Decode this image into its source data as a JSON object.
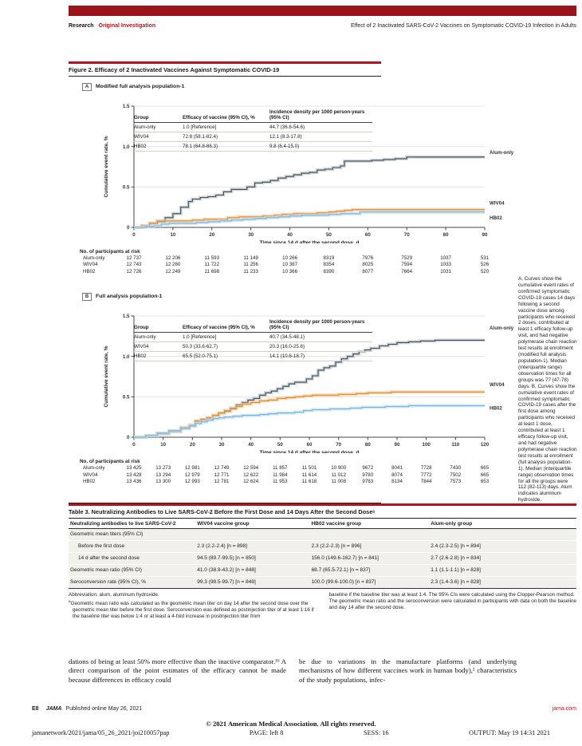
{
  "header": {
    "kicker_left": "Research",
    "kicker_right": "Original Investigation",
    "running_title": "Effect of 2 Inactivated SARS-CoV-2 Vaccines on Symptomatic COVID-19 Infection in Adults"
  },
  "figure": {
    "title": "Figure 2. Efficacy of 2 Inactivated Vaccines Against Symptomatic COVID-19",
    "caption": "A, Curves show the cumulative event rates of confirmed symptomatic COVID-19 cases 14 days following a second vaccine dose among participants who received 2 doses, contributed at least 1 efficacy follow-up visit, and had negative polymerase chain reaction test results at enrollment (modified full analysis population-1). Median (interquartile range) observation times for all groups was 77 (47-78) days. B, Curves show the cumulative event rates of confirmed symptomatic COVID-19 cases after the first dose among participants who received at least 1 dose, contributed at least 1 efficacy follow-up visit, and had negative polymerase chain reaction test results at enrollment (full analysis population-1). Median (interquartile range) observation times for all the groups were 112 (82-113) days. Alum indicates aluminum hydroxide."
  },
  "chart_data": [
    {
      "type": "line",
      "panel": "A",
      "subtitle": "Modified full analysis population-1",
      "xlabel": "Time since 14 d after the second dose, d",
      "ylabel": "Cumulative event rate, %",
      "xlim": [
        0,
        90
      ],
      "ylim": [
        0,
        1.5
      ],
      "xticks": [
        0,
        10,
        20,
        30,
        40,
        50,
        60,
        70,
        80,
        90
      ],
      "yticks": [
        "0",
        "0.5",
        "1.0",
        "1.5"
      ],
      "grid": "horizontal",
      "legend_position": "right-of-curves",
      "inset": {
        "headers": [
          "Group",
          "Efficacy of vaccine (95% CI), %",
          "Incidence density per 1000 person-years (95% CI)"
        ],
        "rows": [
          [
            "Alum-only",
            "1.0 [Reference]",
            "44.7 (36.6-54.6)"
          ],
          [
            "WIV04",
            "72.8 (58.1-82.4)",
            "12.1 (8.3-17.8)"
          ],
          [
            "HB02",
            "78.1 (64.8-86.3)",
            "9.8 (6.4-15.0)"
          ]
        ]
      },
      "series": [
        {
          "name": "Alum-only",
          "color": "#3f4e58",
          "band": "#b9c4cb",
          "label_y": 0.93,
          "x": [
            0,
            2,
            4,
            6,
            8,
            10,
            12,
            14,
            15,
            17,
            19,
            21,
            23,
            25,
            27,
            29,
            31,
            33,
            35,
            37,
            39,
            41,
            43,
            45,
            47,
            49,
            51,
            53,
            54,
            58,
            61,
            64,
            67,
            70,
            90
          ],
          "y": [
            0,
            0.02,
            0.05,
            0.08,
            0.12,
            0.17,
            0.25,
            0.32,
            0.35,
            0.37,
            0.38,
            0.4,
            0.44,
            0.47,
            0.47,
            0.5,
            0.55,
            0.56,
            0.58,
            0.61,
            0.63,
            0.65,
            0.67,
            0.68,
            0.71,
            0.72,
            0.74,
            0.76,
            0.82,
            0.82,
            0.83,
            0.84,
            0.85,
            0.87,
            0.87
          ]
        },
        {
          "name": "WIV04",
          "color": "#e08a28",
          "band": "#f3c795",
          "label_y": 0.3,
          "x": [
            0,
            2,
            4,
            6,
            8,
            12,
            15,
            18,
            21,
            24,
            27,
            30,
            33,
            36,
            38,
            41,
            44,
            47,
            50,
            52,
            54,
            56,
            90
          ],
          "y": [
            0,
            0.02,
            0.05,
            0.07,
            0.08,
            0.08,
            0.09,
            0.1,
            0.1,
            0.12,
            0.13,
            0.13,
            0.14,
            0.15,
            0.16,
            0.17,
            0.17,
            0.18,
            0.19,
            0.2,
            0.21,
            0.22,
            0.22
          ]
        },
        {
          "name": "HB02",
          "color": "#76b4e0",
          "band": "#bddcf0",
          "label_y": 0.12,
          "x": [
            0,
            3,
            5,
            7,
            9,
            13,
            16,
            19,
            22,
            25,
            28,
            31,
            34,
            37,
            40,
            43,
            47,
            50,
            53,
            56,
            58,
            90
          ],
          "y": [
            0,
            0.01,
            0.02,
            0.04,
            0.05,
            0.05,
            0.06,
            0.07,
            0.08,
            0.09,
            0.1,
            0.11,
            0.12,
            0.13,
            0.14,
            0.15,
            0.15,
            0.16,
            0.17,
            0.17,
            0.19,
            0.19
          ]
        }
      ],
      "risk": {
        "title": "No. of participants at risk",
        "rows": [
          {
            "label": "Alum-only",
            "values": [
              "12 737",
              "12 206",
              "11 593",
              "11 149",
              "10 266",
              "8319",
              "7976",
              "7529",
              "1037",
              "531"
            ]
          },
          {
            "label": "WIV04",
            "values": [
              "12 743",
              "12 260",
              "11 722",
              "11 256",
              "10 387",
              "8354",
              "8025",
              "7594",
              "1033",
              "526"
            ]
          },
          {
            "label": "HB02",
            "values": [
              "12 726",
              "12 249",
              "11 698",
              "11 233",
              "10 366",
              "8390",
              "8077",
              "7664",
              "1031",
              "520"
            ]
          }
        ]
      }
    },
    {
      "type": "line",
      "panel": "B",
      "subtitle": "Full analysis population-1",
      "xlabel": "Time since 14 d after the second dose, d",
      "ylabel": "Cumulative event rate, %",
      "xlim": [
        0,
        120
      ],
      "ylim": [
        0,
        1.5
      ],
      "xticks": [
        0,
        10,
        20,
        30,
        40,
        50,
        60,
        70,
        80,
        90,
        100,
        110,
        120
      ],
      "yticks": [
        "0",
        "0.5",
        "1.0",
        "1.5"
      ],
      "grid": "horizontal",
      "legend_position": "right-of-curves",
      "inset": {
        "headers": [
          "Group",
          "Efficacy of vaccine (95% CI), %",
          "Incidence density per 1000 person-years (95% CI)"
        ],
        "rows": [
          [
            "Alum-only",
            "1.0 [Reference]",
            "40.7 (34.5-48.1)"
          ],
          [
            "WIV04",
            "50.3 (33.6-62.7)",
            "20.3 (16.0-25.6)"
          ],
          [
            "HB02",
            "65.5 (52.0-75.1)",
            "14.1 (10.6-18.7)"
          ]
        ]
      },
      "series": [
        {
          "name": "Alum-only",
          "color": "#3f4e58",
          "band": "#b9c4cb",
          "label_y": 1.35,
          "x": [
            0,
            4,
            8,
            12,
            16,
            19,
            21,
            23,
            25,
            27,
            29,
            31,
            33,
            35,
            37,
            39,
            41,
            43,
            45,
            47,
            49,
            51,
            53,
            55,
            57,
            59,
            61,
            63,
            65,
            67,
            69,
            71,
            73,
            75,
            77,
            79,
            81,
            84,
            87,
            90,
            94,
            98,
            103,
            120
          ],
          "y": [
            0,
            0.02,
            0.04,
            0.07,
            0.11,
            0.14,
            0.2,
            0.22,
            0.24,
            0.27,
            0.3,
            0.33,
            0.36,
            0.4,
            0.43,
            0.46,
            0.48,
            0.52,
            0.55,
            0.57,
            0.6,
            0.63,
            0.66,
            0.68,
            0.68,
            0.72,
            0.76,
            0.83,
            0.86,
            0.88,
            0.93,
            0.97,
            1.0,
            1.03,
            1.06,
            1.08,
            1.1,
            1.13,
            1.15,
            1.17,
            1.18,
            1.19,
            1.2,
            1.2
          ]
        },
        {
          "name": "WIV04",
          "color": "#e08a28",
          "band": "#f3c795",
          "label_y": 0.65,
          "x": [
            0,
            4,
            8,
            12,
            16,
            19,
            21,
            23,
            25,
            27,
            29,
            31,
            33,
            35,
            37,
            40,
            43,
            46,
            49,
            52,
            55,
            58,
            61,
            64,
            67,
            70,
            73,
            76,
            80,
            84,
            88,
            92,
            120
          ],
          "y": [
            0,
            0.02,
            0.05,
            0.08,
            0.12,
            0.15,
            0.2,
            0.22,
            0.24,
            0.27,
            0.3,
            0.32,
            0.35,
            0.38,
            0.41,
            0.43,
            0.45,
            0.46,
            0.48,
            0.49,
            0.5,
            0.51,
            0.52,
            0.52,
            0.52,
            0.53,
            0.53,
            0.54,
            0.55,
            0.55,
            0.56,
            0.56,
            0.56
          ]
        },
        {
          "name": "HB02",
          "color": "#76b4e0",
          "band": "#bddcf0",
          "label_y": 0.36,
          "x": [
            0,
            4,
            8,
            12,
            16,
            19,
            21,
            23,
            25,
            27,
            29,
            31,
            34,
            37,
            40,
            43,
            46,
            49,
            52,
            55,
            58,
            61,
            64,
            67,
            70,
            74,
            78,
            82,
            86,
            90,
            94,
            120
          ],
          "y": [
            0,
            0.02,
            0.05,
            0.08,
            0.11,
            0.14,
            0.17,
            0.19,
            0.21,
            0.23,
            0.24,
            0.25,
            0.26,
            0.27,
            0.27,
            0.28,
            0.29,
            0.3,
            0.3,
            0.31,
            0.33,
            0.34,
            0.34,
            0.35,
            0.35,
            0.36,
            0.37,
            0.37,
            0.38,
            0.38,
            0.39,
            0.39
          ]
        }
      ],
      "risk": {
        "title": "No. of participants at risk",
        "rows": [
          {
            "label": "Alum-only",
            "values": [
              "13 425",
              "13 273",
              "12 981",
              "12 749",
              "12 594",
              "11 857",
              "11 501",
              "10 900",
              "9672",
              "8041",
              "7728",
              "7430",
              "665"
            ]
          },
          {
            "label": "WIV04",
            "values": [
              "13 428",
              "13 294",
              "12 979",
              "12 771",
              "12 622",
              "11 984",
              "11 614",
              "11 012",
              "9780",
              "8074",
              "7772",
              "7502",
              "665"
            ]
          },
          {
            "label": "HB02",
            "values": [
              "13 436",
              "13 300",
              "12 993",
              "12 781",
              "12 624",
              "11 953",
              "11 618",
              "11 008",
              "9783",
              "8134",
              "7844",
              "7573",
              "653"
            ]
          }
        ]
      }
    }
  ],
  "table3": {
    "title": "Table 3. Neutralizing Antibodies to Live SARS-CoV-2 Before the First Dose and 14 Days After the Second Doseᵃ",
    "headers": [
      "Neutralizing antibodies to live SARS-CoV-2",
      "WIV04 vaccine group",
      "HB02 vaccine group",
      "Alum-only group"
    ],
    "rows": [
      {
        "label": "Geometric mean titers (95% CI)",
        "indent": 0,
        "values": [
          "",
          "",
          ""
        ]
      },
      {
        "label": "Before the first dose",
        "indent": 1,
        "values": [
          "2.3 (2.2-2.4) [n = 898]",
          "2.3 (2.2-2.3) [n = 896]",
          "2.4 (2.3-2.5) [n = 894]"
        ]
      },
      {
        "label": "14 d after the second dose",
        "indent": 1,
        "values": [
          "94.5 (89.7-99.5) [n = 850]",
          "156.0 (149.6-162.7) [n = 841]",
          "2.7 (2.6-2.8) [n = 834]"
        ]
      },
      {
        "label": "Geometric mean ratio (95% CI)",
        "indent": 0,
        "values": [
          "41.0 (38.9-43.2) [n = 848]",
          "68.7 (65.5-72.1) [n = 837]",
          "1.1 (1.1-1.1) [n = 828]"
        ]
      },
      {
        "label": "Seroconversion rate (95% CI), %",
        "indent": 0,
        "values": [
          "99.3 (98.5-99.7) [n = 848]",
          "100.0 (99.6-100.0) [n = 837]",
          "2.3 (1.4-3.6) [n = 828]"
        ]
      }
    ],
    "abbr": "Abbreviation: alum, aluminum hydroxide.",
    "footnote_marker": "a",
    "footnote_left": "Geometric mean ratio was calculated as the geometric mean titer on day 14 after the second dose over the geometric mean titer before the first dose. Seroconversion was defined as postinjection titer of at least 1:16 if the baseline titer was below 1:4 or at least a 4-fold increase in postinjection titer from",
    "footnote_right": "baseline if the baseline titer was at least 1:4. The 95% CIs were calculated using the Clopper-Pearson method. The geometric mean ratio and the seroconversion were calculated in participants with data on both the baseline and day 14 after the second dose."
  },
  "body": {
    "left": "dations of being at least 50% more effective than the inactive comparator.¹⁶ A direct comparison of the point estimates of the efficacy cannot be made because differences in efficacy could",
    "right": "be due to variations in the manufacture platforms (and underlying mechanisms of how different vaccines work in human body),² characteristics of the study populations, infec-"
  },
  "footer": {
    "page_label": "E8",
    "journal": "JAMA",
    "published": "Published online May 26, 2021",
    "site": "jama.com",
    "copyright": "© 2021 American Medical Association. All rights reserved.",
    "slug": "jamanetwork/2021/jama/05_26_2021/joi210057pap",
    "page_info": "PAGE: left 8",
    "sess": "SESS: 16",
    "output": "OUTPUT: May 19 14:31 2021"
  },
  "colors": {
    "brand_red": "#b01423",
    "topbar_red": "#99151b",
    "alum_line": "#3f4e58",
    "wiv04_line": "#e08a28",
    "hb02_line": "#76b4e0",
    "row_shade": "#f2f0ea"
  }
}
